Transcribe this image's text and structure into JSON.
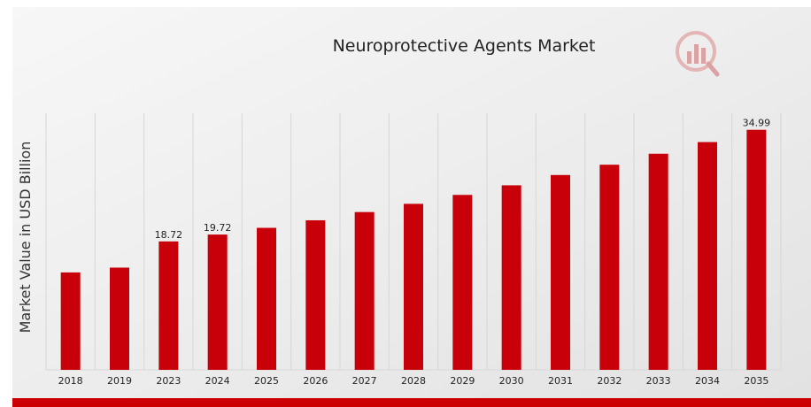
{
  "chart_data": {
    "type": "bar",
    "title": "Neuroprotective Agents Market",
    "xlabel": "",
    "ylabel": "Market Value in USD Billion",
    "categories": [
      "2018",
      "2019",
      "2023",
      "2024",
      "2025",
      "2026",
      "2027",
      "2028",
      "2029",
      "2030",
      "2031",
      "2032",
      "2033",
      "2034",
      "2035"
    ],
    "values": [
      14.2,
      14.9,
      18.72,
      19.72,
      20.7,
      21.8,
      23.0,
      24.2,
      25.5,
      26.9,
      28.4,
      29.9,
      31.5,
      33.2,
      34.99
    ],
    "data_labels": [
      {
        "category": "2023",
        "text": "18.72"
      },
      {
        "category": "2024",
        "text": "19.72"
      },
      {
        "category": "2035",
        "text": "34.99"
      }
    ],
    "ylim": [
      0,
      36.5
    ],
    "grid": "vertical",
    "bar_color": "#c8000a",
    "accent_color": "#cc0000"
  }
}
